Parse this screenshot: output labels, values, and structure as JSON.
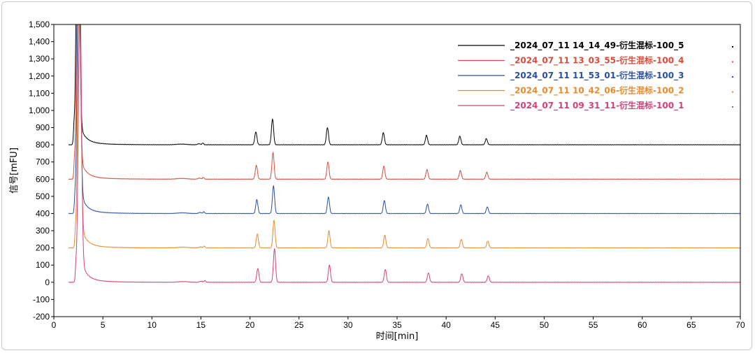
{
  "chart_data": {
    "type": "line",
    "xlabel": "时间[min]",
    "ylabel": "信号[mFU]",
    "xlim": [
      0,
      70
    ],
    "ylim": [
      -200,
      1500
    ],
    "x_ticks": [
      0,
      5,
      10,
      15,
      20,
      25,
      30,
      35,
      40,
      45,
      50,
      55,
      60,
      65,
      70
    ],
    "y_ticks": [
      -200,
      -100,
      0,
      100,
      200,
      300,
      400,
      500,
      600,
      700,
      800,
      900,
      1000,
      1100,
      1200,
      1300,
      1400,
      1500
    ],
    "y_tick_labels": [
      "-200",
      "-100",
      "0",
      "100",
      "200",
      "300",
      "400",
      "500",
      "600",
      "700",
      "800",
      "900",
      "1,000",
      "1,100",
      "1,200",
      "1,300",
      "1,400",
      "1,500"
    ],
    "grid": false,
    "legend_position": "top-right",
    "peaks": [
      {
        "time": 20.6,
        "heights": [
          75,
          80,
          80,
          80,
          80
        ]
      },
      {
        "time": 22.3,
        "heights": [
          150,
          155,
          160,
          160,
          195
        ]
      },
      {
        "time": 27.9,
        "heights": [
          100,
          100,
          95,
          100,
          100
        ]
      },
      {
        "time": 33.6,
        "heights": [
          70,
          75,
          75,
          75,
          75
        ]
      },
      {
        "time": 38.0,
        "heights": [
          55,
          55,
          55,
          55,
          55
        ]
      },
      {
        "time": 41.4,
        "heights": [
          50,
          50,
          50,
          50,
          50
        ]
      },
      {
        "time": 44.1,
        "heights": [
          35,
          40,
          38,
          40,
          38
        ]
      }
    ],
    "series": [
      {
        "name": "_2024_07_11  14_14_49-衍生混标-100_5",
        "color": "#000000",
        "offset": 800,
        "x_shift": 0.0
      },
      {
        "name": "_2024_07_11  13_03_55-衍生混标-100_4",
        "color": "#d94b3a",
        "offset": 600,
        "x_shift": 0.05
      },
      {
        "name": "_2024_07_11  11_53_01-衍生混标-100_3",
        "color": "#2b4f9e",
        "offset": 400,
        "x_shift": 0.1
      },
      {
        "name": "_2024_07_11  10_42_06-衍生混标-100_2",
        "color": "#e88a2c",
        "offset": 200,
        "x_shift": 0.15
      },
      {
        "name": "_2024_07_11  09_31_11-衍生混标-100_1",
        "color": "#d6407a",
        "offset": 0,
        "x_shift": 0.2
      }
    ]
  }
}
